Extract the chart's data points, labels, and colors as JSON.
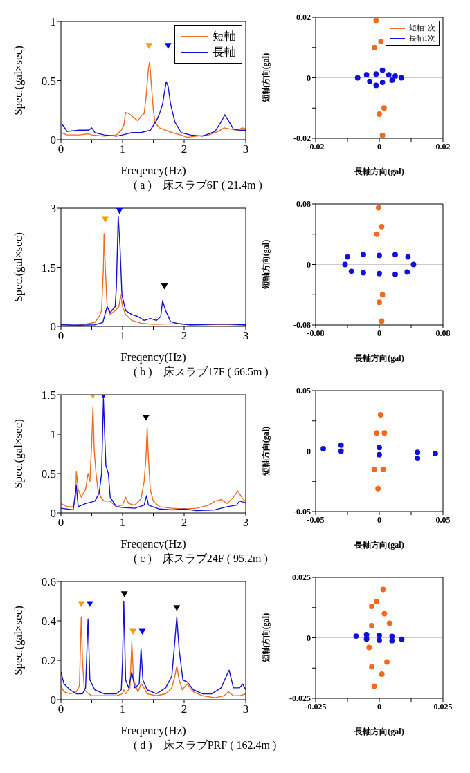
{
  "chart_data": [
    {
      "type": "line",
      "xlabel": "Freqency(Hz)",
      "ylabel": "Spec.(gal×sec)",
      "xlim": [
        0,
        3
      ],
      "ylim": [
        0,
        1
      ],
      "xticks": [
        0,
        {
          "value": 0.5,
          "label": null
        },
        1,
        {
          "value": 1.5,
          "label": null
        },
        2,
        {
          "value": 2.5,
          "label": null
        },
        3
      ],
      "yticks": [
        0,
        0.5,
        1
      ],
      "legend": "top right",
      "annotations": [
        "( a )　床スラブ6F ( 21.4m )"
      ],
      "series": [
        {
          "name": "短軸",
          "color": "#f26a1b",
          "x": [
            0,
            0.1,
            0.3,
            0.45,
            0.5,
            0.7,
            0.9,
            0.98,
            1.02,
            1.05,
            1.1,
            1.15,
            1.2,
            1.25,
            1.3,
            1.35,
            1.38,
            1.42,
            1.44,
            1.47,
            1.5,
            1.53,
            1.6,
            1.7,
            1.8,
            1.95,
            2.05,
            2.2,
            2.4,
            2.55,
            2.65,
            2.75,
            2.85,
            2.95,
            3
          ],
          "values": [
            0.06,
            0.04,
            0.04,
            0.05,
            0.04,
            0.03,
            0.04,
            0.08,
            0.12,
            0.23,
            0.22,
            0.2,
            0.18,
            0.16,
            0.2,
            0.22,
            0.35,
            0.6,
            0.66,
            0.45,
            0.25,
            0.14,
            0.1,
            0.08,
            0.06,
            0.04,
            0.02,
            0.03,
            0.04,
            0.07,
            0.1,
            0.09,
            0.08,
            0.1,
            0.09
          ]
        },
        {
          "name": "長軸",
          "color": "#1010d8",
          "x": [
            0.02,
            0.1,
            0.3,
            0.45,
            0.5,
            0.55,
            0.7,
            0.9,
            1,
            1.15,
            1.3,
            1.45,
            1.5,
            1.55,
            1.6,
            1.65,
            1.68,
            1.71,
            1.74,
            1.78,
            1.85,
            1.95,
            2.1,
            2.3,
            2.5,
            2.6,
            2.66,
            2.72,
            2.8,
            2.9,
            3
          ],
          "values": [
            0.13,
            0.07,
            0.08,
            0.08,
            0.1,
            0.06,
            0.04,
            0.03,
            0.04,
            0.06,
            0.06,
            0.08,
            0.12,
            0.16,
            0.22,
            0.3,
            0.4,
            0.49,
            0.45,
            0.3,
            0.15,
            0.06,
            0.04,
            0.03,
            0.07,
            0.15,
            0.21,
            0.16,
            0.09,
            0.08,
            0.08
          ]
        },
        {
          "type": "scatter",
          "marker": "triangle",
          "color": "#ff9900",
          "x": [
            1.43
          ],
          "values": [
            0.8
          ]
        },
        {
          "type": "scatter",
          "marker": "triangle",
          "color": "#0000ff",
          "x": [
            1.74
          ],
          "values": [
            0.8
          ]
        }
      ]
    },
    {
      "type": "scatter",
      "marker": "circle",
      "xlabel": "長軸方向(gal)",
      "ylabel": "短軸方向(gal)",
      "xlim": [
        -0.02,
        0.02
      ],
      "ylim": [
        -0.02,
        0.02
      ],
      "xticks": [
        -0.02,
        {
          "value": -0.01,
          "label": null
        },
        0,
        {
          "value": 0.01,
          "label": null
        },
        0.02
      ],
      "yticks": [
        -0.02,
        {
          "value": -0.01,
          "label": null
        },
        0,
        {
          "value": 0.01,
          "label": null
        },
        0.02
      ],
      "legend": "top right",
      "ref_lines": [
        {
          "axis": "y",
          "value": 0,
          "color": "#cccccc"
        }
      ],
      "series": [
        {
          "name": "短軸1次",
          "color": "#f26a1b",
          "x": [
            -0.001,
            0.0005,
            0.0015,
            0.001,
            0,
            -0.0015
          ],
          "values": [
            0.019,
            0.012,
            -0.01,
            -0.019,
            -0.012,
            0.01
          ]
        },
        {
          "name": "長軸1次",
          "color": "#1010d8",
          "x": [
            -0.0068,
            -0.004,
            -0.001,
            0.001,
            0.003,
            0.005,
            0.0069,
            0.004,
            0.001,
            -0.001,
            -0.003
          ],
          "values": [
            0,
            0.001,
            0.0012,
            0.0025,
            0.001,
            0.0006,
            0,
            -0.0008,
            -0.0015,
            -0.0025,
            -0.0012
          ]
        }
      ]
    },
    {
      "type": "line",
      "xlabel": "Freqency(Hz)",
      "ylabel": "Spec.(gal×sec)",
      "xlim": [
        0,
        3
      ],
      "ylim": [
        0,
        3
      ],
      "xticks": [
        0,
        {
          "value": 0.5,
          "label": null
        },
        1,
        {
          "value": 1.5,
          "label": null
        },
        2,
        {
          "value": 2.5,
          "label": null
        },
        3
      ],
      "yticks": [
        0,
        1.5,
        3
      ],
      "annotations": [
        "( b )　床スラブ17F ( 66.5m )"
      ],
      "series": [
        {
          "color": "#f26a1b",
          "x": [
            0,
            0.2,
            0.4,
            0.55,
            0.62,
            0.66,
            0.69,
            0.7,
            0.72,
            0.75,
            0.8,
            0.88,
            0.94,
            0.97,
            1,
            1.05,
            1.15,
            1.3,
            1.5,
            1.7,
            1.9,
            2.1,
            2.3,
            2.6,
            3
          ],
          "values": [
            0.05,
            0.02,
            0.06,
            0.1,
            0.25,
            0.4,
            1.5,
            2.35,
            1.5,
            0.5,
            0.3,
            0.4,
            0.5,
            0.8,
            0.5,
            0.3,
            0.15,
            0.08,
            0.05,
            0.06,
            0.07,
            0.04,
            0.04,
            0.05,
            0.03
          ]
        },
        {
          "color": "#1010d8",
          "x": [
            0,
            0.3,
            0.55,
            0.68,
            0.75,
            0.8,
            0.88,
            0.9,
            0.93,
            0.96,
            0.99,
            1.05,
            1.15,
            1.25,
            1.35,
            1.45,
            1.55,
            1.62,
            1.65,
            1.7,
            1.78,
            1.9,
            2.1,
            2.4,
            2.7,
            3
          ],
          "values": [
            0.04,
            0.03,
            0.04,
            0.1,
            0.5,
            0.35,
            0.5,
            1,
            2.8,
            2,
            0.8,
            0.4,
            0.3,
            0.25,
            0.15,
            0.2,
            0.15,
            0.25,
            0.65,
            0.4,
            0.12,
            0.07,
            0.04,
            0.05,
            0.06,
            0.04
          ]
        },
        {
          "type": "scatter",
          "marker": "triangle",
          "color": "#ff9900",
          "x": [
            0.72
          ],
          "values": [
            2.73
          ]
        },
        {
          "type": "scatter",
          "marker": "triangle",
          "color": "#0000ff",
          "x": [
            0.95
          ],
          "values": [
            2.95
          ]
        },
        {
          "type": "scatter",
          "marker": "triangle",
          "color": "#000000",
          "x": [
            1.68
          ],
          "values": [
            1.04
          ]
        }
      ]
    },
    {
      "type": "scatter",
      "marker": "circle",
      "xlabel": "長軸方向(gal)",
      "ylabel": "短軸方向(gal)",
      "xlim": [
        -0.08,
        0.08
      ],
      "ylim": [
        -0.08,
        0.08
      ],
      "xticks": [
        -0.08,
        {
          "value": -0.04,
          "label": null
        },
        0,
        {
          "value": 0.04,
          "label": null
        },
        0.08
      ],
      "yticks": [
        -0.08,
        {
          "value": -0.04,
          "label": null
        },
        0,
        {
          "value": 0.04,
          "label": null
        },
        0.08
      ],
      "ref_lines": [
        {
          "axis": "y",
          "value": 0,
          "color": "#cccccc"
        }
      ],
      "series": [
        {
          "color": "#f26a1b",
          "x": [
            -0.001,
            0.003,
            0.004,
            0.003,
            0,
            -0.003
          ],
          "values": [
            0.075,
            0.05,
            -0.04,
            -0.075,
            -0.05,
            0.04
          ]
        },
        {
          "color": "#1010d8",
          "x": [
            -0.043,
            -0.04,
            -0.02,
            0,
            0.02,
            0.036,
            0.043,
            0.035,
            0.02,
            0,
            -0.02,
            -0.035
          ],
          "values": [
            0,
            0.01,
            0.013,
            0.012,
            0.013,
            0.01,
            0,
            -0.01,
            -0.013,
            -0.012,
            -0.011,
            -0.009
          ]
        }
      ]
    },
    {
      "type": "line",
      "xlabel": "Freqency(Hz)",
      "ylabel": "Spec.(gal×sec)",
      "xlim": [
        0,
        3
      ],
      "ylim": [
        0,
        1.5
      ],
      "xticks": [
        0,
        {
          "value": 0.5,
          "label": null
        },
        1,
        {
          "value": 1.5,
          "label": null
        },
        2,
        {
          "value": 2.5,
          "label": null
        },
        3
      ],
      "yticks": [
        0,
        0.5,
        1,
        1.5
      ],
      "annotations": [
        "( c )　床スラブ24F ( 95.2m )"
      ],
      "series": [
        {
          "color": "#f26a1b",
          "x": [
            0,
            0.1,
            0.2,
            0.24,
            0.25,
            0.28,
            0.33,
            0.4,
            0.44,
            0.47,
            0.5,
            0.52,
            0.54,
            0.57,
            0.6,
            0.65,
            0.7,
            0.8,
            0.9,
            1,
            1.05,
            1.1,
            1.2,
            1.3,
            1.35,
            1.38,
            1.4,
            1.42,
            1.45,
            1.5,
            1.6,
            1.8,
            2,
            2.2,
            2.4,
            2.5,
            2.6,
            2.7,
            2.8,
            2.87,
            2.95,
            3
          ],
          "values": [
            0.12,
            0.08,
            0.08,
            0.2,
            0.53,
            0.3,
            0.2,
            0.3,
            0.5,
            0.4,
            0.9,
            1.35,
            0.8,
            0.5,
            0.3,
            0.2,
            0.15,
            0.15,
            0.08,
            0.1,
            0.2,
            0.12,
            0.1,
            0.18,
            0.4,
            0.7,
            1.08,
            0.7,
            0.3,
            0.15,
            0.08,
            0.06,
            0.05,
            0.06,
            0.1,
            0.15,
            0.17,
            0.12,
            0.2,
            0.28,
            0.18,
            0.15
          ]
        },
        {
          "color": "#1010d8",
          "x": [
            0,
            0.2,
            0.25,
            0.28,
            0.4,
            0.55,
            0.62,
            0.66,
            0.69,
            0.71,
            0.73,
            0.77,
            0.8,
            0.9,
            1,
            1.2,
            1.35,
            1.39,
            1.42,
            1.6,
            1.8,
            2,
            2.2,
            2.5,
            2.7,
            2.85,
            2.9,
            3
          ],
          "values": [
            0.06,
            0.04,
            0.35,
            0.08,
            0.12,
            0.15,
            0.25,
            0.5,
            1.45,
            1,
            0.6,
            0.5,
            0.2,
            0.08,
            0.07,
            0.06,
            0.1,
            0.22,
            0.1,
            0.05,
            0.04,
            0.05,
            0.03,
            0.04,
            0.08,
            0.1,
            0.15,
            0.13
          ]
        },
        {
          "type": "scatter",
          "marker": "triangle",
          "color": "#ff9900",
          "x": [
            0.52
          ],
          "values": [
            1.5
          ]
        },
        {
          "type": "scatter",
          "marker": "triangle",
          "color": "#0000ff",
          "x": [
            0.69
          ],
          "values": [
            1.5
          ]
        },
        {
          "type": "scatter",
          "marker": "triangle",
          "color": "#000000",
          "x": [
            1.38
          ],
          "values": [
            1.22
          ]
        }
      ]
    },
    {
      "type": "scatter",
      "marker": "circle",
      "xlabel": "長軸方向(gal)",
      "ylabel": "短軸方向(gal)",
      "xlim": [
        -0.05,
        0.05
      ],
      "ylim": [
        -0.05,
        0.05
      ],
      "xticks": [
        -0.05,
        {
          "value": -0.025,
          "label": null
        },
        0,
        {
          "value": 0.025,
          "label": null
        },
        0.05
      ],
      "yticks": [
        -0.05,
        {
          "value": -0.025,
          "label": null
        },
        0,
        {
          "value": 0.025,
          "label": null
        },
        0.05
      ],
      "ref_lines": [
        {
          "axis": "y",
          "value": 0,
          "color": "#cccccc"
        }
      ],
      "series": [
        {
          "color": "#f26a1b",
          "x": [
            0.001,
            0.004,
            0.003,
            -0.001,
            -0.004,
            -0.002
          ],
          "values": [
            0.03,
            0.015,
            -0.015,
            -0.031,
            -0.015,
            0.015
          ]
        },
        {
          "color": "#1010d8",
          "x": [
            -0.044,
            -0.03,
            0,
            0.03,
            0.044,
            0.03,
            0,
            -0.03
          ],
          "values": [
            0.002,
            0.005,
            0.003,
            -0.001,
            -0.002,
            -0.006,
            -0.003,
            0
          ]
        }
      ]
    },
    {
      "type": "line",
      "xlabel": "Freqency(Hz)",
      "ylabel": "Spec.(gal×sec)",
      "xlim": [
        0,
        3
      ],
      "ylim": [
        0,
        0.6
      ],
      "xticks": [
        0,
        {
          "value": 0.5,
          "label": null
        },
        1,
        {
          "value": 1.5,
          "label": null
        },
        2,
        {
          "value": 2.5,
          "label": null
        },
        3
      ],
      "yticks": [
        0,
        0.2,
        0.4,
        0.6
      ],
      "annotations": [
        "( d )　床スラブPRF ( 162.4m )"
      ],
      "series": [
        {
          "color": "#f26a1b",
          "x": [
            0,
            0.05,
            0.15,
            0.25,
            0.3,
            0.33,
            0.35,
            0.38,
            0.45,
            0.5,
            0.7,
            0.9,
            1,
            1.02,
            1.05,
            1.12,
            1.15,
            1.18,
            1.25,
            1.3,
            1.33,
            1.4,
            1.55,
            1.7,
            1.8,
            1.85,
            1.88,
            1.92,
            1.97,
            2.05,
            2.15,
            2.3,
            2.5,
            2.65,
            2.72,
            2.8,
            2.9,
            3
          ],
          "values": [
            0.07,
            0.04,
            0.03,
            0.04,
            0.07,
            0.42,
            0.2,
            0.05,
            0.03,
            0.02,
            0.02,
            0.02,
            0.03,
            0.05,
            0.03,
            0.06,
            0.29,
            0.1,
            0.04,
            0.08,
            0.07,
            0.03,
            0.02,
            0.03,
            0.06,
            0.12,
            0.17,
            0.1,
            0.05,
            0.08,
            0.04,
            0.02,
            0.01,
            0.02,
            0.04,
            0.02,
            0.02,
            0.03
          ]
        },
        {
          "color": "#1010d8",
          "x": [
            0,
            0.05,
            0.15,
            0.25,
            0.35,
            0.4,
            0.44,
            0.47,
            0.55,
            0.7,
            0.9,
            0.98,
            1,
            1.02,
            1.05,
            1.1,
            1.15,
            1.2,
            1.27,
            1.3,
            1.33,
            1.4,
            1.55,
            1.7,
            1.8,
            1.85,
            1.88,
            1.92,
            1.98,
            2.05,
            2.15,
            2.3,
            2.45,
            2.6,
            2.7,
            2.73,
            2.8,
            2.9,
            2.95,
            3
          ],
          "values": [
            0.14,
            0.08,
            0.05,
            0.03,
            0.03,
            0.06,
            0.41,
            0.1,
            0.05,
            0.03,
            0.03,
            0.05,
            0.2,
            0.5,
            0.1,
            0.06,
            0.14,
            0.06,
            0.08,
            0.26,
            0.1,
            0.05,
            0.03,
            0.06,
            0.12,
            0.3,
            0.42,
            0.25,
            0.1,
            0.09,
            0.05,
            0.03,
            0.03,
            0.06,
            0.13,
            0.15,
            0.06,
            0.06,
            0.08,
            0.05
          ]
        },
        {
          "type": "scatter",
          "marker": "triangle",
          "color": "#ff9900",
          "x": [
            0.33,
            1.17
          ],
          "values": [
            0.49,
            0.35
          ]
        },
        {
          "type": "scatter",
          "marker": "triangle",
          "color": "#0000ff",
          "x": [
            0.47,
            1.32
          ],
          "values": [
            0.49,
            0.35
          ]
        },
        {
          "type": "scatter",
          "marker": "triangle",
          "color": "#000000",
          "x": [
            1.03,
            1.88
          ],
          "values": [
            0.54,
            0.47
          ]
        }
      ]
    },
    {
      "type": "scatter",
      "marker": "circle",
      "xlabel": "長軸方向(gal)",
      "ylabel": "短軸方向(gal)",
      "xlim": [
        -0.025,
        0.025
      ],
      "ylim": [
        -0.025,
        0.025
      ],
      "xticks": [
        -0.025,
        {
          "value": -0.0125,
          "label": null
        },
        0,
        {
          "value": 0.0125,
          "label": null
        },
        0.025
      ],
      "yticks": [
        -0.025,
        {
          "value": -0.0125,
          "label": null
        },
        0,
        {
          "value": 0.0125,
          "label": null
        },
        0.025
      ],
      "ref_lines": [
        {
          "axis": "y",
          "value": 0,
          "color": "#cccccc"
        }
      ],
      "series": [
        {
          "color": "#f26a1b",
          "x": [
            0.0015,
            0.002,
            0.004,
            0.003,
            0.001,
            -0.002,
            -0.003,
            -0.004,
            -0.003,
            -0.003,
            -0.001
          ],
          "values": [
            0.02,
            0.01,
            0.006,
            -0.01,
            -0.015,
            -0.02,
            -0.012,
            -0.004,
            0.005,
            0.013,
            0.015
          ]
        },
        {
          "color": "#1010d8",
          "x": [
            -0.0091,
            -0.005,
            0,
            0.005,
            0.0088,
            0.005,
            0,
            -0.005
          ],
          "values": [
            0.0007,
            0.0013,
            0.001,
            0.0006,
            -0.0006,
            -0.0012,
            -0.001,
            -0.0005
          ]
        }
      ]
    }
  ]
}
